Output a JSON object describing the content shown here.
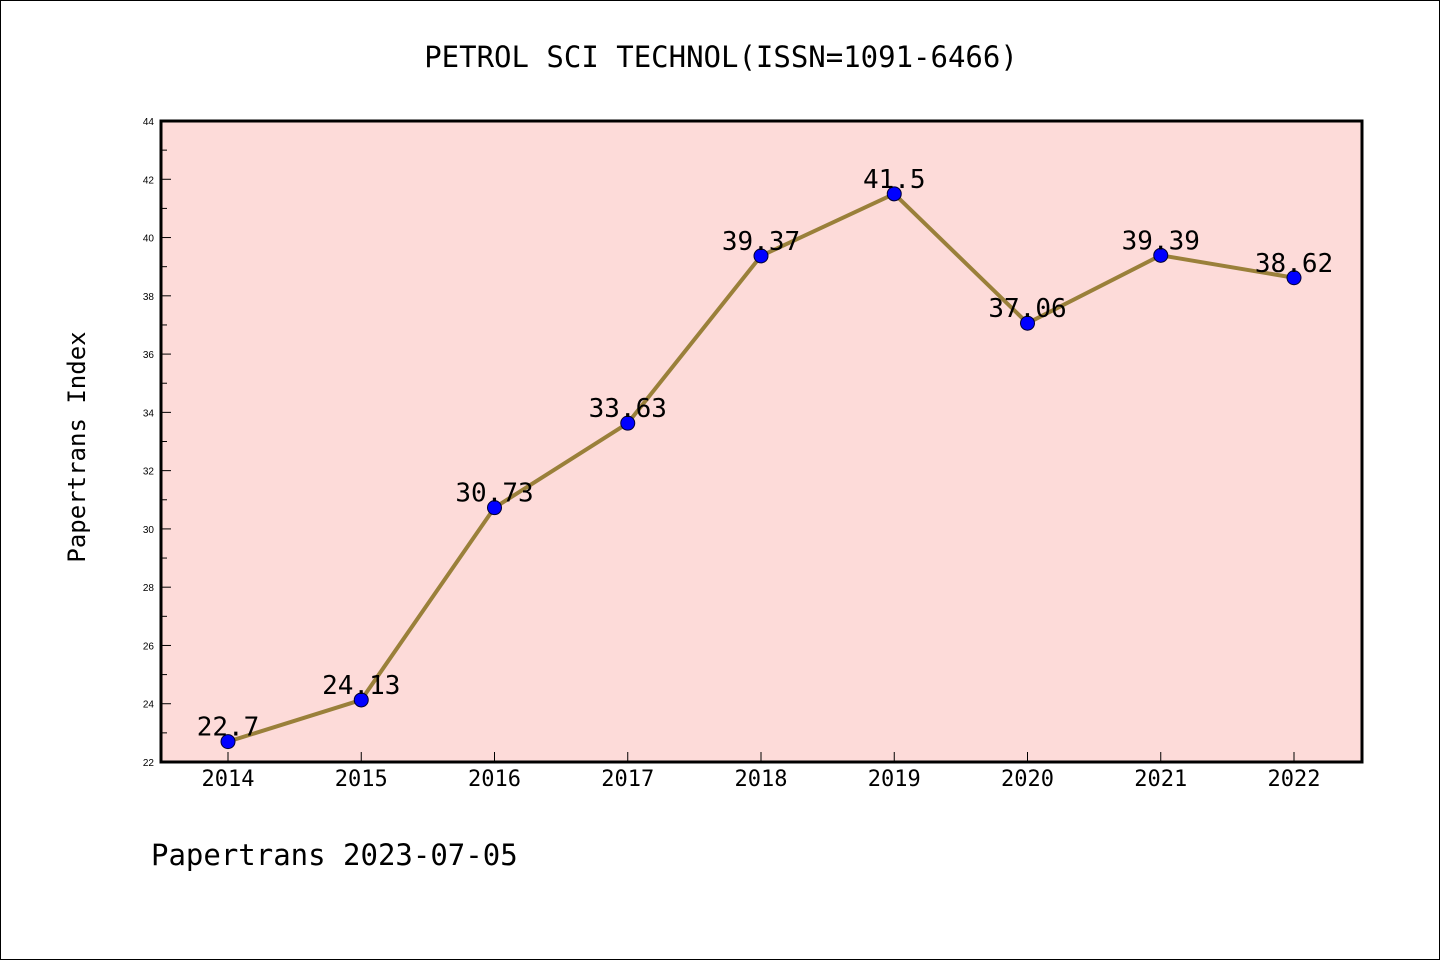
{
  "chart_data": {
    "type": "line",
    "title": "PETROL SCI TECHNOL(ISSN=1091-6466)",
    "xlabel": "",
    "ylabel": "Papertrans Index",
    "categories": [
      "2014",
      "2015",
      "2016",
      "2017",
      "2018",
      "2019",
      "2020",
      "2021",
      "2022"
    ],
    "series": [
      {
        "values": [
          22.7,
          24.13,
          30.73,
          33.63,
          39.37,
          41.5,
          37.06,
          39.39,
          38.62
        ],
        "labels": [
          "22.7",
          "24.13",
          "30.73",
          "33.63",
          "39.37",
          "41.5",
          "37.06",
          "39.39",
          "38.62"
        ]
      }
    ],
    "ylim": [
      22,
      44
    ],
    "yticks": [
      "22",
      "24",
      "26",
      "28",
      "30",
      "32",
      "34",
      "36",
      "38",
      "40",
      "42",
      "44"
    ],
    "grid": false,
    "colors": {
      "plot_background": "#fddbd9",
      "line": "#9a803a",
      "marker": "#0000ff"
    }
  },
  "footer": "Papertrans 2023-07-05"
}
